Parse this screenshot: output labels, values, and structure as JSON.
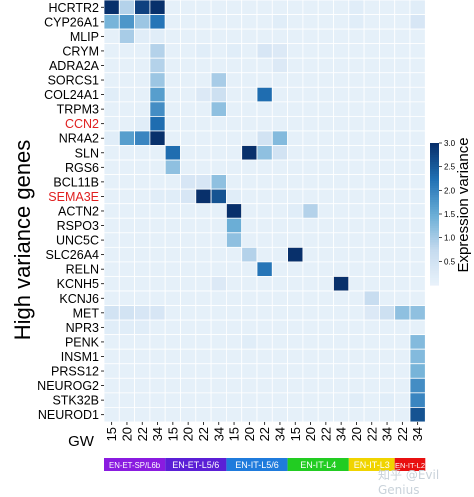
{
  "chart_data": {
    "type": "heatmap",
    "ylabel": "High variance genes",
    "xlabel": "GW",
    "colorbar_label": "Expression variance",
    "colorbar_ticks": [
      "0.5",
      "1.0",
      "1.5",
      "2.0",
      "2.5",
      "3.0"
    ],
    "color_range": [
      0,
      3
    ],
    "genes": [
      "HCRTR2",
      "CYP26A1",
      "MLIP",
      "CRYM",
      "ADRA2A",
      "SORCS1",
      "COL24A1",
      "TRPM3",
      "CCN2",
      "NR4A2",
      "SLN",
      "RGS6",
      "BCL11B",
      "SEMA3E",
      "ACTN2",
      "RSPO3",
      "UNC5C",
      "SLC26A4",
      "RELN",
      "KCNH5",
      "KCNJ6",
      "MET",
      "NPR3",
      "PENK",
      "INSM1",
      "PRSS12",
      "NEUROG2",
      "STK32B",
      "NEUROD1"
    ],
    "highlighted_genes": [
      "CCN2",
      "SEMA3E"
    ],
    "x_ticks": [
      "15",
      "20",
      "22",
      "34",
      "15",
      "20",
      "22",
      "34",
      "15",
      "20",
      "22",
      "34",
      "15",
      "20",
      "22",
      "34",
      "20",
      "22",
      "34",
      "22",
      "34"
    ],
    "groups": [
      {
        "label": "EN-ET-SP/L6b",
        "color": "#8a1be0",
        "start": 0,
        "count": 4
      },
      {
        "label": "EN-ET-L5/6",
        "color": "#5b1fd6",
        "start": 4,
        "count": 4
      },
      {
        "label": "EN-IT-L5/6",
        "color": "#1f7bdc",
        "start": 8,
        "count": 4
      },
      {
        "label": "EN-IT-L4",
        "color": "#22cc22",
        "start": 12,
        "count": 4
      },
      {
        "label": "EN-IT-L3",
        "color": "#f0d400",
        "start": 16,
        "count": 3
      },
      {
        "label": "EN-IT-L2",
        "color": "#e81010",
        "start": 19,
        "count": 2
      }
    ],
    "values": [
      [
        3.0,
        0.9,
        2.8,
        3.0,
        0.1,
        0.1,
        0.1,
        0.1,
        0.1,
        0.1,
        0.1,
        0.1,
        0.1,
        0.1,
        0.1,
        0.1,
        0.2,
        0.1,
        0.1,
        0.1,
        0.2
      ],
      [
        1.4,
        1.8,
        1.1,
        2.2,
        0.1,
        0.1,
        0.1,
        0.1,
        0.1,
        0.1,
        0.1,
        0.2,
        0.1,
        0.1,
        0.1,
        0.1,
        0.2,
        0.1,
        0.1,
        0.1,
        0.4
      ],
      [
        0.1,
        1.0,
        0.2,
        0.2,
        0.1,
        0.1,
        0.1,
        0.1,
        0.1,
        0.1,
        0.1,
        0.1,
        0.1,
        0.1,
        0.1,
        0.1,
        0.1,
        0.1,
        0.1,
        0.1,
        0.1
      ],
      [
        0.1,
        0.1,
        0.1,
        0.9,
        0.1,
        0.1,
        0.2,
        0.1,
        0.2,
        0.1,
        0.4,
        0.3,
        0.1,
        0.1,
        0.1,
        0.1,
        0.1,
        0.1,
        0.1,
        0.1,
        0.1
      ],
      [
        0.1,
        0.1,
        0.1,
        0.9,
        0.1,
        0.1,
        0.1,
        0.1,
        0.1,
        0.1,
        0.1,
        0.3,
        0.1,
        0.1,
        0.1,
        0.1,
        0.1,
        0.1,
        0.1,
        0.1,
        0.1
      ],
      [
        0.1,
        0.1,
        0.1,
        1.1,
        0.1,
        0.1,
        0.1,
        1.0,
        0.1,
        0.1,
        0.1,
        0.1,
        0.1,
        0.1,
        0.1,
        0.1,
        0.1,
        0.1,
        0.1,
        0.1,
        0.1
      ],
      [
        0.2,
        0.1,
        0.1,
        1.7,
        0.1,
        0.1,
        0.3,
        0.6,
        0.1,
        0.1,
        2.3,
        0.1,
        0.1,
        0.1,
        0.1,
        0.1,
        0.1,
        0.1,
        0.1,
        0.1,
        0.1
      ],
      [
        0.1,
        0.1,
        0.1,
        1.9,
        0.1,
        0.1,
        0.1,
        1.2,
        0.1,
        0.1,
        0.1,
        0.1,
        0.1,
        0.1,
        0.1,
        0.1,
        0.1,
        0.1,
        0.1,
        0.1,
        0.1
      ],
      [
        0.1,
        0.1,
        0.2,
        2.3,
        0.1,
        0.1,
        0.1,
        0.1,
        0.1,
        0.1,
        0.1,
        0.1,
        0.1,
        0.1,
        0.1,
        0.1,
        0.1,
        0.1,
        0.1,
        0.1,
        0.1
      ],
      [
        0.2,
        1.7,
        2.0,
        3.0,
        0.1,
        0.1,
        0.1,
        0.1,
        0.1,
        0.1,
        0.5,
        1.3,
        0.1,
        0.1,
        0.1,
        0.1,
        0.1,
        0.1,
        0.1,
        0.1,
        0.1
      ],
      [
        0.1,
        0.1,
        0.1,
        0.1,
        2.3,
        0.1,
        0.1,
        0.1,
        0.1,
        3.0,
        1.2,
        0.5,
        0.1,
        0.1,
        0.1,
        0.1,
        0.1,
        0.1,
        0.1,
        0.1,
        0.1
      ],
      [
        0.1,
        0.1,
        0.1,
        0.1,
        1.2,
        0.1,
        0.1,
        0.1,
        0.1,
        0.1,
        0.1,
        0.1,
        0.1,
        0.1,
        0.1,
        0.1,
        0.1,
        0.1,
        0.1,
        0.1,
        0.1
      ],
      [
        0.1,
        0.1,
        0.1,
        0.1,
        0.1,
        0.4,
        0.4,
        1.2,
        0.1,
        0.1,
        0.1,
        0.1,
        0.1,
        0.1,
        0.1,
        0.1,
        0.1,
        0.1,
        0.1,
        0.1,
        0.1
      ],
      [
        0.1,
        0.1,
        0.1,
        0.2,
        0.2,
        0.4,
        3.0,
        2.6,
        0.2,
        0.1,
        0.1,
        0.1,
        0.1,
        0.1,
        0.1,
        0.1,
        0.1,
        0.1,
        0.1,
        0.1,
        0.1
      ],
      [
        0.1,
        0.1,
        0.1,
        0.1,
        0.1,
        0.1,
        0.1,
        0.1,
        3.0,
        0.1,
        0.1,
        0.1,
        0.2,
        0.9,
        0.1,
        0.1,
        0.1,
        0.1,
        0.1,
        0.1,
        0.1
      ],
      [
        0.1,
        0.1,
        0.1,
        0.1,
        0.1,
        0.1,
        0.1,
        0.1,
        1.5,
        0.1,
        0.1,
        0.1,
        0.1,
        0.1,
        0.1,
        0.1,
        0.1,
        0.1,
        0.1,
        0.1,
        0.1
      ],
      [
        0.1,
        0.1,
        0.1,
        0.1,
        0.1,
        0.1,
        0.1,
        0.1,
        1.2,
        0.1,
        0.1,
        0.1,
        0.1,
        0.1,
        0.1,
        0.1,
        0.1,
        0.1,
        0.1,
        0.1,
        0.1
      ],
      [
        0.1,
        0.1,
        0.1,
        0.1,
        0.1,
        0.1,
        0.1,
        0.1,
        0.1,
        0.9,
        0.1,
        0.1,
        3.0,
        0.1,
        0.1,
        0.1,
        0.1,
        0.1,
        0.1,
        0.1,
        0.1
      ],
      [
        0.1,
        0.1,
        0.1,
        0.1,
        0.1,
        0.1,
        0.1,
        0.1,
        0.1,
        0.1,
        2.2,
        0.1,
        0.1,
        0.1,
        0.1,
        0.1,
        0.1,
        0.1,
        0.1,
        0.1,
        0.1
      ],
      [
        0.1,
        0.1,
        0.1,
        0.1,
        0.1,
        0.1,
        0.1,
        0.3,
        0.1,
        0.1,
        0.1,
        0.1,
        0.1,
        0.1,
        0.1,
        3.0,
        0.1,
        0.1,
        0.1,
        0.1,
        0.1
      ],
      [
        0.1,
        0.1,
        0.1,
        0.1,
        0.1,
        0.1,
        0.1,
        0.1,
        0.1,
        0.1,
        0.1,
        0.1,
        0.1,
        0.1,
        0.1,
        0.1,
        0.1,
        0.7,
        0.1,
        0.1,
        0.1
      ],
      [
        0.5,
        0.5,
        0.4,
        0.4,
        0.1,
        0.1,
        0.1,
        0.1,
        0.1,
        0.1,
        0.1,
        0.1,
        0.1,
        0.1,
        0.1,
        0.1,
        0.1,
        0.3,
        0.6,
        1.2,
        1.2
      ],
      [
        0.2,
        0.2,
        0.2,
        0.1,
        0.1,
        0.1,
        0.1,
        0.1,
        0.1,
        0.1,
        0.1,
        0.1,
        0.1,
        0.1,
        0.1,
        0.1,
        0.1,
        0.1,
        0.1,
        0.1,
        0.1
      ],
      [
        0.1,
        0.1,
        0.1,
        0.1,
        0.1,
        0.1,
        0.1,
        0.1,
        0.1,
        0.2,
        0.1,
        0.1,
        0.1,
        0.1,
        0.1,
        0.1,
        0.1,
        0.1,
        0.1,
        0.1,
        1.3
      ],
      [
        0.1,
        0.1,
        0.1,
        0.1,
        0.1,
        0.1,
        0.1,
        0.1,
        0.1,
        0.1,
        0.1,
        0.1,
        0.1,
        0.1,
        0.1,
        0.1,
        0.1,
        0.1,
        0.1,
        0.1,
        1.3
      ],
      [
        0.1,
        0.1,
        0.1,
        0.1,
        0.1,
        0.1,
        0.1,
        0.1,
        0.1,
        0.1,
        0.1,
        0.1,
        0.1,
        0.1,
        0.1,
        0.1,
        0.1,
        0.1,
        0.1,
        0.1,
        1.4
      ],
      [
        0.1,
        0.1,
        0.1,
        0.1,
        0.1,
        0.1,
        0.1,
        0.1,
        0.1,
        0.1,
        0.1,
        0.1,
        0.1,
        0.1,
        0.1,
        0.1,
        0.1,
        0.1,
        0.1,
        0.1,
        1.9
      ],
      [
        0.1,
        0.1,
        0.1,
        0.1,
        0.1,
        0.1,
        0.1,
        0.1,
        0.1,
        0.1,
        0.1,
        0.1,
        0.1,
        0.1,
        0.1,
        0.1,
        0.2,
        0.1,
        0.2,
        0.1,
        2.0
      ],
      [
        0.1,
        0.1,
        0.1,
        0.1,
        0.1,
        0.1,
        0.1,
        0.1,
        0.1,
        0.1,
        0.1,
        0.1,
        0.1,
        0.1,
        0.1,
        0.1,
        0.1,
        0.1,
        0.1,
        0.1,
        2.6
      ]
    ]
  },
  "watermark": "知乎 @Evil Genius",
  "colors": {
    "low": "#eaf3fb",
    "high": "#08306b",
    "highlight_text": "#e02020",
    "grid": "#ffffff"
  }
}
